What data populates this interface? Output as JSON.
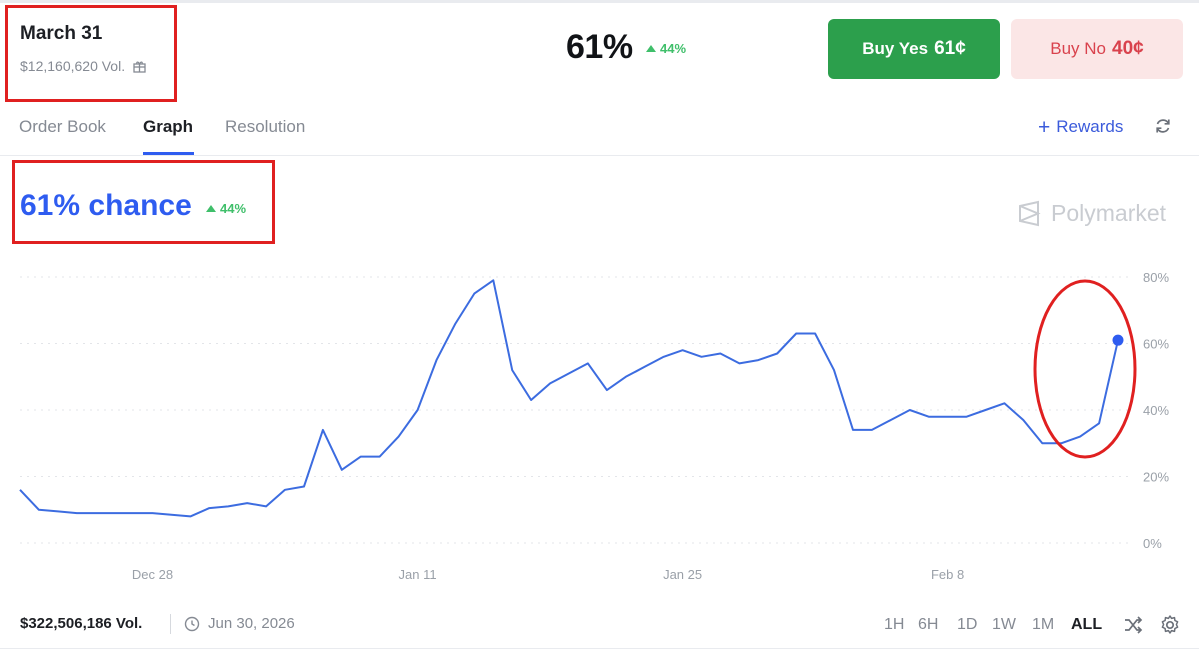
{
  "header": {
    "market_name": "March 31",
    "volume": "$12,160,620 Vol.",
    "price": "61%",
    "price_change": "44%"
  },
  "actions": {
    "buy_yes_label": "Buy Yes",
    "buy_yes_price": "61¢",
    "buy_no_label": "Buy No",
    "buy_no_price": "40¢"
  },
  "tabs": [
    {
      "label": "Order Book",
      "active": false
    },
    {
      "label": "Graph",
      "active": true
    },
    {
      "label": "Resolution",
      "active": false
    }
  ],
  "rewards_label": "Rewards",
  "chance": {
    "label": "61% chance",
    "change": "44%"
  },
  "brand": "Polymarket",
  "colors": {
    "accent": "#2e5cf0",
    "positive": "#3fbf6a",
    "buy_yes_bg": "#2c9f4c",
    "buy_no_bg": "#fbe6e6",
    "buy_no_text": "#d9424d",
    "annotation": "#e02020"
  },
  "icons": {
    "volume": "gift-icon",
    "refresh": "refresh-icon",
    "date": "clock-icon",
    "shuffle": "shuffle-icon",
    "settings": "gear-icon"
  },
  "footer": {
    "total_volume": "$322,506,186 Vol.",
    "end_date": "Jun 30, 2026",
    "ranges": [
      "1H",
      "6H",
      "1D",
      "1W",
      "1M",
      "ALL"
    ],
    "active_range": "ALL"
  },
  "chart_data": {
    "type": "line",
    "title": "",
    "xlabel": "",
    "ylabel": "",
    "ylim": [
      0,
      80
    ],
    "grid": true,
    "x_ticks": [
      "Dec 28",
      "Jan 11",
      "Jan 25",
      "Feb 8"
    ],
    "y_ticks": [
      "80%",
      "60%",
      "40%",
      "20%",
      "0%"
    ],
    "series": [
      {
        "x": [
          "Dec 21",
          "Dec 22",
          "Dec 23",
          "Dec 24",
          "Dec 25",
          "Dec 26",
          "Dec 27",
          "Dec 28",
          "Dec 29",
          "Dec 30",
          "Dec 31",
          "Jan 1",
          "Jan 2",
          "Jan 3",
          "Jan 4",
          "Jan 5",
          "Jan 6",
          "Jan 7",
          "Jan 8",
          "Jan 9",
          "Jan 10",
          "Jan 11",
          "Jan 12",
          "Jan 13",
          "Jan 14",
          "Jan 15",
          "Jan 16",
          "Jan 17",
          "Jan 18",
          "Jan 19",
          "Jan 20",
          "Jan 21",
          "Jan 22",
          "Jan 23",
          "Jan 24",
          "Jan 25",
          "Jan 26",
          "Jan 27",
          "Jan 28",
          "Jan 29",
          "Jan 30",
          "Jan 31",
          "Feb 1",
          "Feb 2",
          "Feb 3",
          "Feb 4",
          "Feb 5",
          "Feb 6",
          "Feb 7",
          "Feb 8",
          "Feb 9",
          "Feb 10",
          "Feb 11",
          "Feb 12",
          "Feb 13",
          "Feb 14",
          "Feb 15",
          "Feb 16",
          "Feb 17"
        ],
        "values": [
          16,
          10,
          9.5,
          9,
          9,
          9,
          9,
          9,
          8.5,
          8,
          10.5,
          11,
          12,
          11,
          16,
          17,
          34,
          22,
          26,
          26,
          32,
          40,
          55,
          66,
          75,
          79,
          52,
          43,
          48,
          51,
          54,
          46,
          50,
          53,
          56,
          58,
          56,
          57,
          54,
          55,
          57,
          63,
          63,
          52,
          34,
          34,
          37,
          40,
          38,
          38,
          38,
          40,
          42,
          37,
          30,
          30,
          32,
          36,
          61
        ]
      }
    ]
  }
}
